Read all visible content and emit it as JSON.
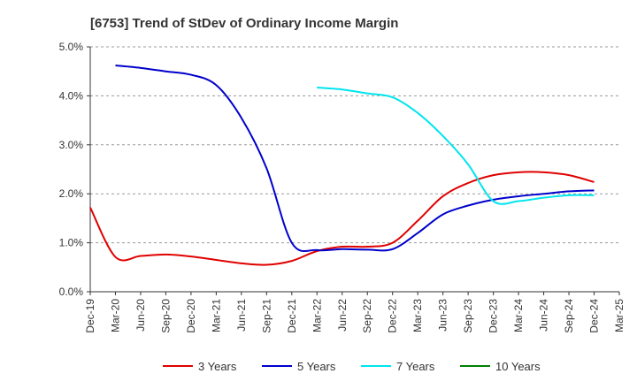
{
  "chart_data": {
    "type": "line",
    "title": "[6753]  Trend of StDev of Ordinary Income Margin",
    "xlabel": "",
    "ylabel": "",
    "x": [
      "Dec-19",
      "Mar-20",
      "Jun-20",
      "Sep-20",
      "Dec-20",
      "Mar-21",
      "Jun-21",
      "Sep-21",
      "Dec-21",
      "Mar-22",
      "Jun-22",
      "Sep-22",
      "Dec-22",
      "Mar-23",
      "Jun-23",
      "Sep-23",
      "Dec-23",
      "Mar-24",
      "Jun-24",
      "Sep-24",
      "Dec-24",
      "Mar-25"
    ],
    "x_tick_labels": [
      "Dec-19",
      "Mar-20",
      "Jun-20",
      "Sep-20",
      "Dec-20",
      "Mar-21",
      "Jun-21",
      "Sep-21",
      "Dec-21",
      "Mar-22",
      "Jun-22",
      "Sep-22",
      "Dec-22",
      "Mar-23",
      "Jun-23",
      "Sep-23",
      "Dec-23",
      "Mar-24",
      "Jun-24",
      "Sep-24",
      "Dec-24",
      "Mar-25"
    ],
    "y_tick_labels": [
      "0.0%",
      "1.0%",
      "2.0%",
      "3.0%",
      "4.0%",
      "5.0%"
    ],
    "ylim": [
      0,
      5
    ],
    "y_unit": "%",
    "grid": "horizontal dashed",
    "legend_position": "bottom",
    "series": [
      {
        "name": "3 Years",
        "color": "#e00000",
        "values": [
          1.72,
          0.71,
          0.73,
          0.76,
          0.72,
          0.65,
          0.58,
          0.55,
          0.63,
          0.83,
          0.92,
          0.92,
          1.0,
          1.45,
          1.95,
          2.22,
          2.38,
          2.44,
          2.44,
          2.38,
          2.24,
          null
        ]
      },
      {
        "name": "5 Years",
        "color": "#0000cc",
        "values": [
          null,
          4.62,
          4.57,
          4.5,
          4.43,
          4.22,
          3.55,
          2.52,
          1.0,
          0.85,
          0.87,
          0.86,
          0.87,
          1.2,
          1.58,
          1.76,
          1.88,
          1.95,
          2.0,
          2.05,
          2.07,
          null
        ]
      },
      {
        "name": "7 Years",
        "color": "#00e5ee",
        "values": [
          null,
          null,
          null,
          null,
          null,
          null,
          null,
          null,
          null,
          4.17,
          4.13,
          4.05,
          3.97,
          3.65,
          3.18,
          2.6,
          1.85,
          1.85,
          1.92,
          1.97,
          1.97,
          null
        ]
      },
      {
        "name": "10 Years",
        "color": "#008000",
        "values": [
          null,
          null,
          null,
          null,
          null,
          null,
          null,
          null,
          null,
          null,
          null,
          null,
          null,
          null,
          null,
          null,
          null,
          null,
          null,
          null,
          null,
          null
        ]
      }
    ]
  }
}
